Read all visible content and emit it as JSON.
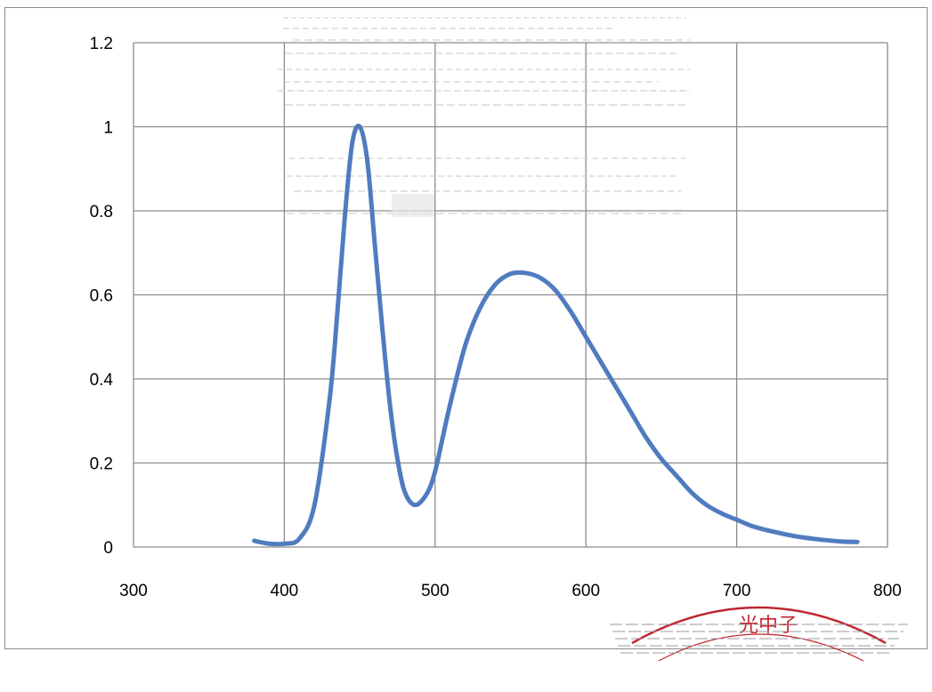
{
  "chart_data": {
    "type": "line",
    "title": "",
    "xlabel": "",
    "ylabel": "",
    "xlim": [
      300,
      800
    ],
    "ylim": [
      0,
      1.2
    ],
    "x_ticks": [
      "300",
      "400",
      "500",
      "600",
      "700",
      "800"
    ],
    "y_ticks": [
      "0",
      "0.2",
      "0.4",
      "0.6",
      "0.8",
      "1",
      "1.2"
    ],
    "grid": true,
    "legend": "none",
    "series": [
      {
        "color": "#4f7cbf",
        "x": [
          380,
          390,
          400,
          410,
          420,
          430,
          435,
          440,
          445,
          450,
          455,
          460,
          465,
          470,
          475,
          480,
          487,
          495,
          500,
          505,
          510,
          520,
          530,
          540,
          550,
          560,
          570,
          580,
          590,
          600,
          610,
          620,
          630,
          640,
          650,
          660,
          670,
          680,
          690,
          700,
          710,
          720,
          730,
          740,
          750,
          760,
          770,
          780
        ],
        "y": [
          0.015,
          0.008,
          0.008,
          0.02,
          0.1,
          0.35,
          0.55,
          0.78,
          0.96,
          1.0,
          0.92,
          0.72,
          0.52,
          0.34,
          0.21,
          0.13,
          0.1,
          0.13,
          0.18,
          0.26,
          0.34,
          0.48,
          0.57,
          0.625,
          0.65,
          0.652,
          0.64,
          0.61,
          0.56,
          0.5,
          0.44,
          0.38,
          0.32,
          0.26,
          0.21,
          0.17,
          0.13,
          0.1,
          0.08,
          0.065,
          0.05,
          0.04,
          0.032,
          0.025,
          0.02,
          0.016,
          0.013,
          0.012
        ]
      }
    ]
  },
  "stamp": {
    "color": "#c0262d",
    "text": "光中子"
  }
}
